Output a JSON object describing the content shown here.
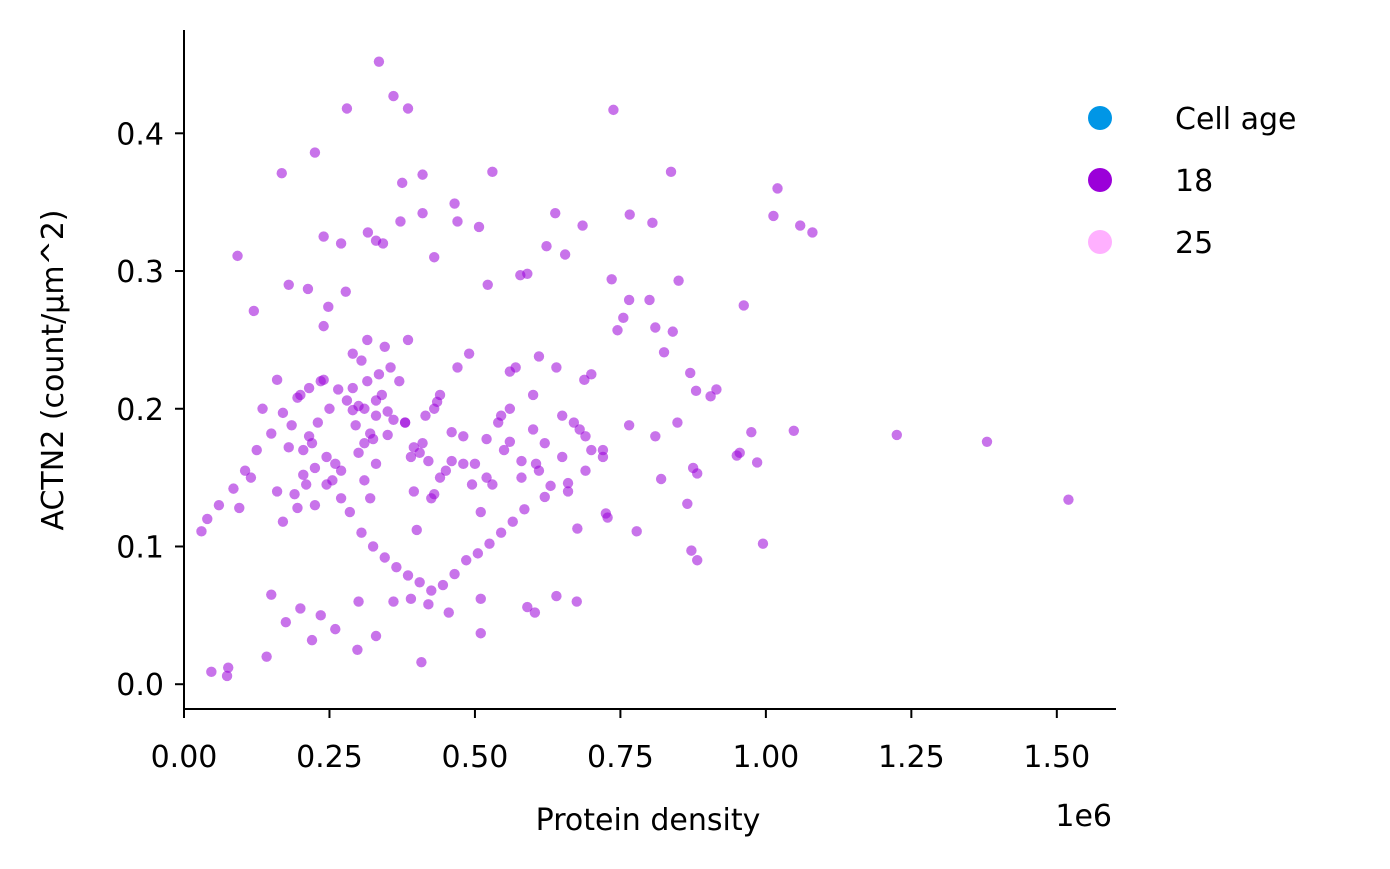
{
  "chart_data": {
    "type": "scatter",
    "xlabel": "Protein density",
    "ylabel": "ACTN2 (count/µm^2)",
    "x_offset_label": "1e6",
    "xlim": [
      0,
      1600000
    ],
    "ylim": [
      -0.018,
      0.475
    ],
    "x_ticks": [
      0,
      250000,
      500000,
      750000,
      1000000,
      1250000,
      1500000
    ],
    "x_tick_labels": [
      "0.00",
      "0.25",
      "0.50",
      "0.75",
      "1.00",
      "1.25",
      "1.50"
    ],
    "y_ticks": [
      0.0,
      0.1,
      0.2,
      0.3,
      0.4
    ],
    "y_tick_labels": [
      "0.0",
      "0.1",
      "0.2",
      "0.3",
      "0.4"
    ],
    "grid": false,
    "legend": {
      "placement": "upper-right outside",
      "title": "Cell age",
      "title_color": "#0096e6",
      "entries": [
        {
          "label": "18",
          "color": "#9b00d9"
        },
        {
          "label": "25",
          "color": "#ffb0ff"
        }
      ]
    },
    "series": [
      {
        "name": "18",
        "color": "#9b00d9",
        "x": [
          335000,
          360000,
          385000,
          738000,
          280000,
          225000,
          168000,
          375000,
          410000,
          837000,
          1020000,
          530000,
          465000,
          410000,
          470000,
          1013000,
          1059000,
          1080000,
          638000,
          766000,
          805000,
          623000,
          578000,
          240000,
          685000,
          92000,
          316000,
          330000,
          342000,
          430000,
          507000,
          372000,
          270000,
          735000,
          655000,
          590000,
          522000,
          180000,
          213000,
          278000,
          248000,
          120000,
          962000,
          765000,
          800000,
          850000,
          745000,
          810000,
          755000,
          880000,
          825000,
          840000,
          610000,
          915000,
          688000,
          905000,
          560000,
          870000,
          975000,
          1048000,
          1225000,
          1380000,
          765000,
          848000,
          955000,
          995000,
          950000,
          875000,
          810000,
          882000,
          1520000,
          985000,
          820000,
          865000,
          728000,
          676000,
          778000,
          872000,
          882000,
          603000,
          675000,
          590000,
          510000,
          408000,
          76000,
          74000,
          47000,
          142000,
          220000,
          298000,
          330000,
          260000,
          175000,
          235000,
          200000,
          300000,
          150000,
          360000,
          390000,
          420000,
          455000,
          510000,
          640000,
          725000,
          630000,
          700000,
          580000,
          690000,
          605000,
          670000,
          560000,
          650000,
          600000,
          545000,
          520000,
          480000,
          495000,
          430000,
          460000,
          440000,
          395000,
          350000,
          380000,
          310000,
          330000,
          290000,
          265000,
          240000,
          215000,
          195000,
          170000,
          150000,
          125000,
          105000,
          85000,
          60000,
          40000,
          30000,
          95000,
          115000,
          135000,
          160000,
          185000,
          205000,
          225000,
          245000,
          270000,
          285000,
          305000,
          325000,
          345000,
          365000,
          385000,
          405000,
          425000,
          445000,
          465000,
          485000,
          505000,
          525000,
          545000,
          565000,
          585000,
          620000,
          660000,
          690000,
          720000,
          310000,
          320000,
          300000,
          330000,
          340000,
          295000,
          315000,
          325000,
          350000,
          280000,
          290000,
          360000,
          310000,
          335000,
          305000,
          345000,
          320000,
          300000,
          315000,
          330000,
          290000,
          355000,
          240000,
          250000,
          230000,
          260000,
          220000,
          210000,
          270000,
          200000,
          190000,
          235000,
          255000,
          245000,
          225000,
          215000,
          180000,
          170000,
          160000,
          205000,
          195000,
          400000,
          420000,
          380000,
          410000,
          430000,
          390000,
          440000,
          450000,
          370000,
          460000,
          470000,
          405000,
          415000,
          395000,
          385000,
          425000,
          435000,
          480000,
          500000,
          490000,
          520000,
          510000,
          540000,
          550000,
          530000,
          570000,
          560000,
          580000,
          600000,
          620000,
          610000,
          640000,
          650000,
          660000,
          680000,
          700000,
          720000
        ],
        "y": [
          0.452,
          0.427,
          0.418,
          0.417,
          0.418,
          0.386,
          0.371,
          0.364,
          0.37,
          0.372,
          0.36,
          0.372,
          0.349,
          0.342,
          0.336,
          0.34,
          0.333,
          0.328,
          0.342,
          0.341,
          0.335,
          0.318,
          0.297,
          0.325,
          0.333,
          0.311,
          0.328,
          0.322,
          0.32,
          0.31,
          0.332,
          0.336,
          0.32,
          0.294,
          0.312,
          0.298,
          0.29,
          0.29,
          0.287,
          0.285,
          0.274,
          0.271,
          0.275,
          0.279,
          0.279,
          0.293,
          0.257,
          0.259,
          0.266,
          0.213,
          0.241,
          0.256,
          0.238,
          0.214,
          0.221,
          0.209,
          0.227,
          0.226,
          0.183,
          0.184,
          0.181,
          0.176,
          0.188,
          0.19,
          0.168,
          0.102,
          0.166,
          0.157,
          0.18,
          0.153,
          0.134,
          0.161,
          0.149,
          0.131,
          0.121,
          0.113,
          0.111,
          0.097,
          0.09,
          0.052,
          0.06,
          0.056,
          0.037,
          0.016,
          0.012,
          0.006,
          0.009,
          0.02,
          0.032,
          0.025,
          0.035,
          0.04,
          0.045,
          0.05,
          0.055,
          0.06,
          0.065,
          0.06,
          0.062,
          0.058,
          0.052,
          0.062,
          0.064,
          0.124,
          0.144,
          0.17,
          0.15,
          0.18,
          0.16,
          0.19,
          0.176,
          0.165,
          0.21,
          0.195,
          0.178,
          0.16,
          0.145,
          0.138,
          0.162,
          0.15,
          0.172,
          0.181,
          0.19,
          0.2,
          0.206,
          0.199,
          0.214,
          0.221,
          0.215,
          0.208,
          0.197,
          0.182,
          0.17,
          0.155,
          0.142,
          0.13,
          0.12,
          0.111,
          0.128,
          0.15,
          0.2,
          0.221,
          0.188,
          0.17,
          0.157,
          0.145,
          0.135,
          0.125,
          0.11,
          0.1,
          0.092,
          0.085,
          0.079,
          0.074,
          0.068,
          0.072,
          0.08,
          0.09,
          0.095,
          0.102,
          0.11,
          0.118,
          0.127,
          0.136,
          0.146,
          0.155,
          0.165,
          0.148,
          0.135,
          0.202,
          0.195,
          0.21,
          0.188,
          0.22,
          0.178,
          0.198,
          0.206,
          0.215,
          0.192,
          0.175,
          0.225,
          0.235,
          0.245,
          0.182,
          0.168,
          0.25,
          0.16,
          0.24,
          0.23,
          0.26,
          0.2,
          0.19,
          0.16,
          0.175,
          0.145,
          0.155,
          0.21,
          0.138,
          0.22,
          0.148,
          0.165,
          0.13,
          0.18,
          0.172,
          0.118,
          0.14,
          0.152,
          0.128,
          0.112,
          0.162,
          0.19,
          0.175,
          0.2,
          0.165,
          0.21,
          0.155,
          0.22,
          0.183,
          0.23,
          0.168,
          0.195,
          0.14,
          0.25,
          0.135,
          0.205,
          0.18,
          0.16,
          0.24,
          0.15,
          0.125,
          0.19,
          0.17,
          0.145,
          0.23,
          0.2,
          0.162,
          0.185,
          0.175,
          0.155,
          0.23,
          0.195,
          0.14,
          0.185,
          0.225,
          0.17
        ]
      }
    ]
  }
}
